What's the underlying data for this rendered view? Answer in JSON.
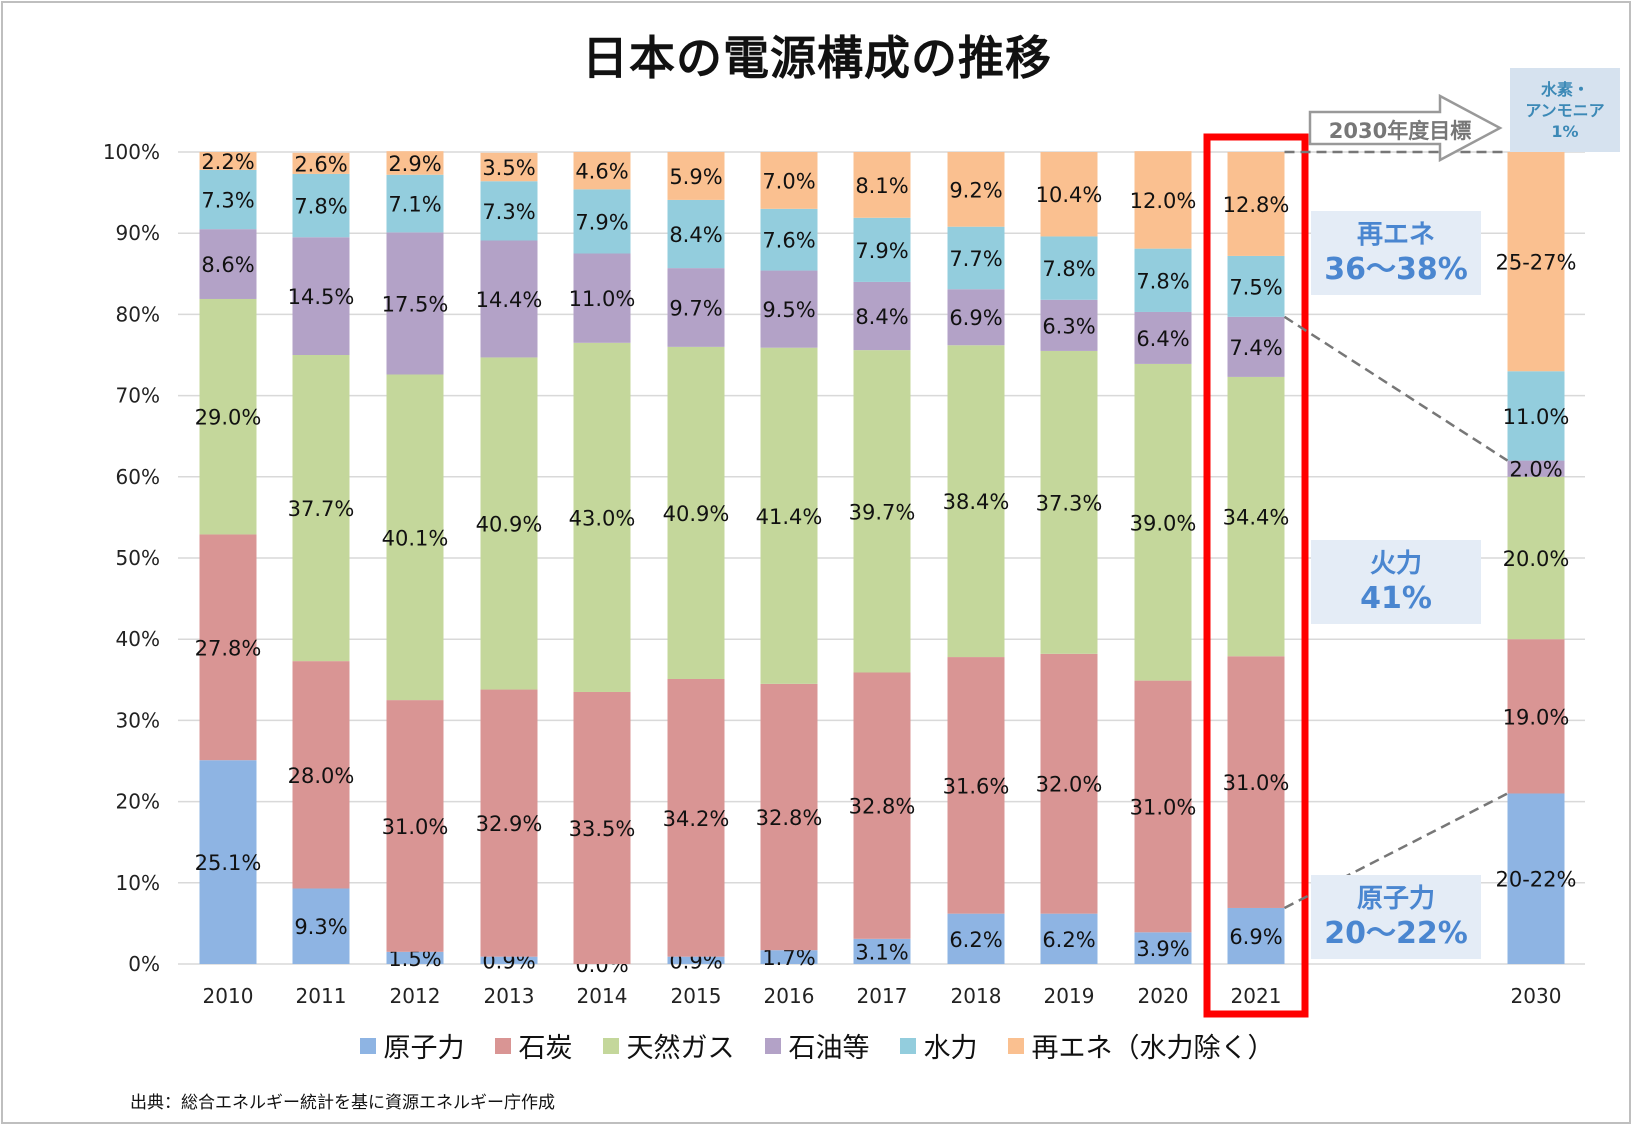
{
  "title": "日本の電源構成の推移",
  "source": "出典：総合エネルギー統計を基に資源エネルギー庁作成",
  "chart_data": {
    "type": "bar",
    "stacked": true,
    "title": "日本の電源構成の推移",
    "ylim": [
      0,
      100
    ],
    "yticks": [
      "0%",
      "10%",
      "20%",
      "30%",
      "40%",
      "50%",
      "60%",
      "70%",
      "80%",
      "90%",
      "100%"
    ],
    "categories": [
      "2010",
      "2011",
      "2012",
      "2013",
      "2014",
      "2015",
      "2016",
      "2017",
      "2018",
      "2019",
      "2020",
      "2021"
    ],
    "series": [
      {
        "name": "原子力",
        "color": "#8eb4e3",
        "values": [
          25.1,
          9.3,
          1.5,
          0.9,
          0.0,
          0.9,
          1.7,
          3.1,
          6.2,
          6.2,
          3.9,
          6.9
        ]
      },
      {
        "name": "石炭",
        "color": "#d99594",
        "values": [
          27.8,
          28.0,
          31.0,
          32.9,
          33.5,
          34.2,
          32.8,
          32.8,
          31.6,
          32.0,
          31.0,
          31.0
        ]
      },
      {
        "name": "天然ガス",
        "color": "#c4d79b",
        "values": [
          29.0,
          37.7,
          40.1,
          40.9,
          43.0,
          40.9,
          41.4,
          39.7,
          38.4,
          37.3,
          39.0,
          34.4
        ]
      },
      {
        "name": "石油等",
        "color": "#b3a2c7",
        "values": [
          8.6,
          14.5,
          17.5,
          14.4,
          11.0,
          9.7,
          9.5,
          8.4,
          6.9,
          6.3,
          6.4,
          7.4
        ]
      },
      {
        "name": "水力",
        "color": "#93cddd",
        "values": [
          7.3,
          7.8,
          7.1,
          7.3,
          7.9,
          8.4,
          7.6,
          7.9,
          7.7,
          7.8,
          7.8,
          7.5
        ]
      },
      {
        "name": "再エネ（水力除く）",
        "color": "#fac090",
        "values": [
          2.2,
          2.6,
          2.9,
          3.5,
          4.6,
          5.9,
          7.0,
          8.1,
          9.2,
          10.4,
          12.0,
          12.8
        ]
      }
    ],
    "target": {
      "category": "2030",
      "segments": [
        {
          "series": "原子力",
          "value": 21,
          "label": "20-22%"
        },
        {
          "series": "石炭",
          "value": 19,
          "label": "19.0%"
        },
        {
          "series": "天然ガス",
          "value": 20,
          "label": "20.0%"
        },
        {
          "series": "石油等",
          "value": 2,
          "label": "2.0%"
        },
        {
          "series": "水力",
          "value": 11,
          "label": "11.0%"
        },
        {
          "series": "再エネ（水力除く）",
          "value": 27,
          "label": "25-27%"
        }
      ]
    },
    "highlight": "2021"
  },
  "annotations": {
    "target_arrow": "2030年度目標",
    "hydrogen_line1": "水素・",
    "hydrogen_line2": "アンモニア",
    "hydrogen_line3": "1%",
    "renew_line1": "再エネ",
    "renew_line2": "36～38%",
    "thermal_line1": "火力",
    "thermal_line2": "41%",
    "nuclear_line1": "原子力",
    "nuclear_line2": "20～22%"
  },
  "colors": {
    "highlight_box": "#ff0000",
    "callout_bg": "#e4ecf6",
    "callout_text": "#4a86d0"
  }
}
